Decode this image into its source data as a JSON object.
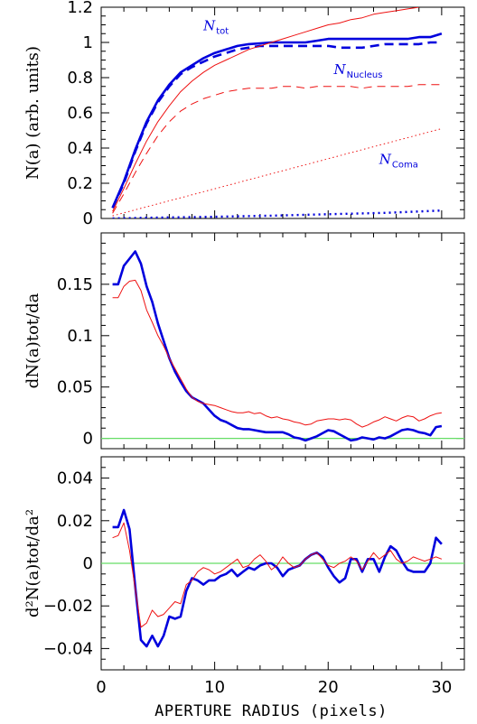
{
  "chart_data": [
    {
      "type": "line",
      "ylabel": "N(a) (arb. units)",
      "xlim": [
        0,
        32
      ],
      "ylim": [
        0,
        1.2
      ],
      "yticks": [
        "0",
        "0.2",
        "0.4",
        "0.6",
        "0.8",
        "1",
        "1.2"
      ],
      "annotations": [
        {
          "main": "N",
          "sub": "tot",
          "x": 9.0,
          "y": 1.07,
          "color": "#0000dd"
        },
        {
          "main": "N",
          "sub": "Nucleus",
          "x": 20.5,
          "y": 0.82,
          "color": "#0000dd"
        },
        {
          "main": "N",
          "sub": "Coma",
          "x": 24.5,
          "y": 0.31,
          "color": "#0000dd"
        }
      ],
      "series": [
        {
          "style": "blue-solid-thick",
          "x": [
            1,
            2,
            3,
            4,
            5,
            6,
            7,
            8,
            9,
            10,
            11,
            12,
            13,
            14,
            15,
            16,
            17,
            18,
            19,
            20,
            21,
            22,
            23,
            24,
            25,
            26,
            27,
            28,
            29,
            30
          ],
          "values": [
            0.06,
            0.21,
            0.39,
            0.55,
            0.67,
            0.76,
            0.83,
            0.87,
            0.91,
            0.94,
            0.96,
            0.98,
            0.99,
            0.995,
            1.0,
            1.0,
            1.0,
            1.0,
            1.01,
            1.02,
            1.02,
            1.02,
            1.02,
            1.02,
            1.02,
            1.02,
            1.02,
            1.03,
            1.03,
            1.05
          ]
        },
        {
          "style": "blue-dashed-thick",
          "x": [
            1,
            2,
            3,
            4,
            5,
            6,
            7,
            8,
            9,
            10,
            11,
            12,
            13,
            14,
            15,
            16,
            17,
            18,
            19,
            20,
            21,
            22,
            23,
            24,
            25,
            26,
            27,
            28,
            29,
            30
          ],
          "values": [
            0.06,
            0.2,
            0.38,
            0.54,
            0.66,
            0.75,
            0.82,
            0.86,
            0.89,
            0.92,
            0.94,
            0.96,
            0.97,
            0.98,
            0.98,
            0.98,
            0.98,
            0.98,
            0.98,
            0.98,
            0.97,
            0.97,
            0.97,
            0.98,
            0.99,
            0.99,
            0.99,
            0.99,
            1.0,
            1.0
          ]
        },
        {
          "style": "blue-dotted-thick",
          "x": [
            1,
            5,
            10,
            15,
            20,
            25,
            30
          ],
          "values": [
            0.0,
            0.005,
            0.01,
            0.016,
            0.024,
            0.032,
            0.045
          ]
        },
        {
          "style": "red-solid-thin",
          "x": [
            1,
            2,
            3,
            4,
            5,
            6,
            7,
            8,
            9,
            10,
            11,
            12,
            13,
            14,
            15,
            16,
            17,
            18,
            19,
            20,
            21,
            22,
            23,
            24,
            25,
            26,
            27,
            28
          ],
          "values": [
            0.04,
            0.17,
            0.31,
            0.44,
            0.55,
            0.64,
            0.72,
            0.78,
            0.83,
            0.87,
            0.9,
            0.93,
            0.96,
            0.98,
            1.0,
            1.02,
            1.04,
            1.06,
            1.08,
            1.1,
            1.11,
            1.13,
            1.14,
            1.16,
            1.17,
            1.18,
            1.19,
            1.2
          ]
        },
        {
          "style": "red-dashed-thin",
          "x": [
            1,
            2,
            3,
            4,
            5,
            6,
            7,
            8,
            9,
            10,
            11,
            12,
            13,
            14,
            15,
            16,
            17,
            18,
            19,
            20,
            21,
            22,
            23,
            24,
            25,
            26,
            27,
            28,
            29,
            30
          ],
          "values": [
            0.03,
            0.14,
            0.26,
            0.37,
            0.47,
            0.55,
            0.61,
            0.65,
            0.68,
            0.7,
            0.72,
            0.73,
            0.74,
            0.74,
            0.74,
            0.75,
            0.75,
            0.74,
            0.75,
            0.75,
            0.75,
            0.75,
            0.74,
            0.75,
            0.75,
            0.75,
            0.75,
            0.76,
            0.76,
            0.76
          ]
        },
        {
          "style": "red-dotted-thin",
          "x": [
            1,
            30
          ],
          "values": [
            0.015,
            0.51
          ]
        }
      ]
    },
    {
      "type": "line",
      "ylabel": "dN(a)tot/da",
      "xlim": [
        0,
        32
      ],
      "ylim": [
        -0.01,
        0.2
      ],
      "yticks": [
        "0",
        "0.05",
        "0.1",
        "0.15"
      ],
      "reference_line": {
        "y": 0,
        "color": "#66dd66"
      },
      "series": [
        {
          "style": "blue-solid-thick",
          "x": [
            1,
            1.5,
            2,
            2.5,
            3,
            3.5,
            4,
            4.5,
            5,
            5.5,
            6,
            6.5,
            7,
            7.5,
            8,
            8.5,
            9,
            9.5,
            10,
            10.5,
            11,
            11.5,
            12,
            12.5,
            13,
            13.5,
            14,
            14.5,
            15,
            15.5,
            16,
            16.5,
            17,
            17.5,
            18,
            18.5,
            19,
            19.5,
            20,
            20.5,
            21,
            21.5,
            22,
            22.5,
            23,
            23.5,
            24,
            24.5,
            25,
            25.5,
            26,
            26.5,
            27,
            27.5,
            28,
            28.5,
            29,
            29.5,
            30
          ],
          "values": [
            0.15,
            0.15,
            0.168,
            0.175,
            0.182,
            0.17,
            0.148,
            0.133,
            0.112,
            0.095,
            0.078,
            0.065,
            0.055,
            0.046,
            0.04,
            0.037,
            0.034,
            0.028,
            0.022,
            0.018,
            0.016,
            0.013,
            0.01,
            0.009,
            0.009,
            0.008,
            0.007,
            0.006,
            0.006,
            0.006,
            0.006,
            0.004,
            0.001,
            0.0,
            -0.002,
            0.0,
            0.002,
            0.005,
            0.008,
            0.007,
            0.004,
            0.001,
            -0.002,
            -0.001,
            0.001,
            0.0,
            -0.001,
            0.001,
            0.0,
            0.002,
            0.005,
            0.008,
            0.009,
            0.008,
            0.006,
            0.005,
            0.003,
            0.011,
            0.012
          ]
        },
        {
          "style": "red-solid-thin",
          "x": [
            1,
            1.5,
            2,
            2.5,
            3,
            3.5,
            4,
            4.5,
            5,
            5.5,
            6,
            6.5,
            7,
            7.5,
            8,
            8.5,
            9,
            9.5,
            10,
            10.5,
            11,
            11.5,
            12,
            12.5,
            13,
            13.5,
            14,
            14.5,
            15,
            15.5,
            16,
            16.5,
            17,
            17.5,
            18,
            18.5,
            19,
            19.5,
            20,
            20.5,
            21,
            21.5,
            22,
            22.5,
            23,
            23.5,
            24,
            24.5,
            25,
            25.5,
            26,
            26.5,
            27,
            27.5,
            28,
            28.5,
            29,
            29.5,
            30
          ],
          "values": [
            0.137,
            0.137,
            0.148,
            0.153,
            0.154,
            0.144,
            0.125,
            0.113,
            0.1,
            0.09,
            0.078,
            0.068,
            0.058,
            0.048,
            0.04,
            0.036,
            0.034,
            0.033,
            0.032,
            0.03,
            0.028,
            0.026,
            0.025,
            0.025,
            0.026,
            0.024,
            0.025,
            0.022,
            0.02,
            0.021,
            0.019,
            0.018,
            0.016,
            0.015,
            0.013,
            0.014,
            0.017,
            0.018,
            0.019,
            0.019,
            0.018,
            0.019,
            0.018,
            0.014,
            0.011,
            0.013,
            0.016,
            0.018,
            0.021,
            0.019,
            0.017,
            0.02,
            0.022,
            0.021,
            0.017,
            0.019,
            0.022,
            0.024,
            0.025
          ]
        }
      ]
    },
    {
      "type": "line",
      "ylabel": "d²N(a)tot/da²",
      "xlabel": "APERTURE RADIUS (pixels)",
      "xlim": [
        0,
        32
      ],
      "ylim": [
        -0.05,
        0.05
      ],
      "xticks": [
        "0",
        "10",
        "20",
        "30"
      ],
      "yticks": [
        "−0.04",
        "−0.02",
        "0",
        "0.02",
        "0.04"
      ],
      "reference_line": {
        "y": 0,
        "color": "#66dd66"
      },
      "series": [
        {
          "style": "blue-solid-thick",
          "x": [
            1,
            1.5,
            2,
            2.5,
            3,
            3.5,
            4,
            4.5,
            5,
            5.5,
            6,
            6.5,
            7,
            7.5,
            8,
            8.5,
            9,
            9.5,
            10,
            10.5,
            11,
            11.5,
            12,
            12.5,
            13,
            13.5,
            14,
            14.5,
            15,
            15.5,
            16,
            16.5,
            17,
            17.5,
            18,
            18.5,
            19,
            19.5,
            20,
            20.5,
            21,
            21.5,
            22,
            22.5,
            23,
            23.5,
            24,
            24.5,
            25,
            25.5,
            26,
            26.5,
            27,
            27.5,
            28,
            28.5,
            29,
            29.5,
            30
          ],
          "values": [
            0.017,
            0.017,
            0.025,
            0.016,
            -0.011,
            -0.036,
            -0.039,
            -0.034,
            -0.039,
            -0.034,
            -0.025,
            -0.026,
            -0.025,
            -0.013,
            -0.007,
            -0.008,
            -0.01,
            -0.008,
            -0.008,
            -0.006,
            -0.005,
            -0.003,
            -0.006,
            -0.004,
            -0.002,
            -0.003,
            -0.001,
            0.0,
            0.0,
            -0.002,
            -0.006,
            -0.003,
            -0.002,
            -0.001,
            0.002,
            0.004,
            0.005,
            0.003,
            -0.002,
            -0.006,
            -0.009,
            -0.007,
            0.002,
            0.002,
            -0.004,
            0.002,
            0.002,
            -0.004,
            0.003,
            0.008,
            0.006,
            0.001,
            -0.003,
            -0.004,
            -0.004,
            -0.004,
            0.0,
            0.012,
            0.009
          ]
        },
        {
          "style": "red-solid-thin",
          "x": [
            1,
            1.5,
            2,
            2.5,
            3,
            3.5,
            4,
            4.5,
            5,
            5.5,
            6,
            6.5,
            7,
            7.5,
            8,
            8.5,
            9,
            9.5,
            10,
            10.5,
            11,
            11.5,
            12,
            12.5,
            13,
            13.5,
            14,
            14.5,
            15,
            15.5,
            16,
            16.5,
            17,
            17.5,
            18,
            18.5,
            19,
            19.5,
            20,
            20.5,
            21,
            21.5,
            22,
            22.5,
            23,
            23.5,
            24,
            24.5,
            25,
            25.5,
            26,
            26.5,
            27,
            27.5,
            28,
            28.5,
            29,
            29.5,
            30
          ],
          "values": [
            0.012,
            0.013,
            0.019,
            0.006,
            -0.012,
            -0.03,
            -0.028,
            -0.022,
            -0.025,
            -0.024,
            -0.021,
            -0.018,
            -0.019,
            -0.01,
            -0.008,
            -0.004,
            -0.002,
            -0.003,
            -0.005,
            -0.004,
            -0.002,
            0.0,
            0.002,
            -0.002,
            -0.001,
            0.002,
            0.004,
            0.001,
            -0.003,
            -0.001,
            0.003,
            0.0,
            -0.002,
            -0.001,
            0.002,
            0.004,
            0.005,
            0.002,
            -0.001,
            -0.002,
            0.0,
            0.001,
            0.003,
            0.001,
            -0.003,
            0.001,
            0.005,
            0.002,
            0.004,
            0.006,
            0.002,
            0.0,
            0.001,
            0.003,
            0.002,
            0.001,
            0.002,
            0.003,
            0.002
          ]
        }
      ]
    }
  ]
}
